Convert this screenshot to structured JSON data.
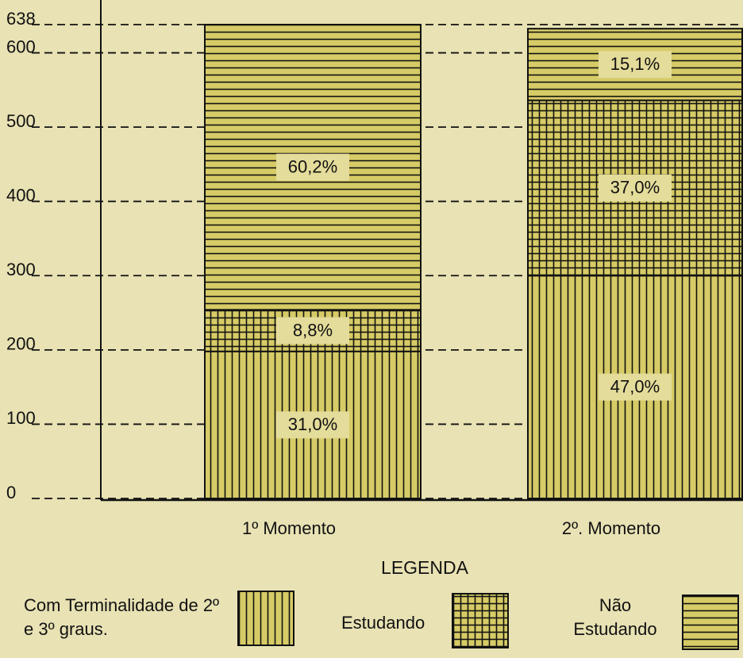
{
  "chart_data": {
    "type": "stacked_bar",
    "categories": [
      "1º Momento",
      "2º. Momento"
    ],
    "series": [
      {
        "name": "Com Terminalidade de 2º e 3º graus.",
        "color": "#d6cb66",
        "pattern": "vertical",
        "values": [
          198,
          300
        ],
        "value_labels": [
          "31,0%",
          "47,0%"
        ]
      },
      {
        "name": "Estudando",
        "color": "#d6cb66",
        "pattern": "grid",
        "values": [
          56,
          236
        ],
        "value_labels": [
          "8,8%",
          "37,0%"
        ]
      },
      {
        "name": "Não Estudando",
        "color": "#d6cb66",
        "pattern": "horizontal",
        "values": [
          384,
          96.5
        ],
        "value_labels": [
          "60,2%",
          "15,1%"
        ]
      }
    ],
    "ylim": [
      0,
      638
    ],
    "yticks": [
      0,
      100,
      200,
      300,
      400,
      500,
      600,
      638
    ],
    "grid": true,
    "legend_title": "LEGENDA"
  }
}
